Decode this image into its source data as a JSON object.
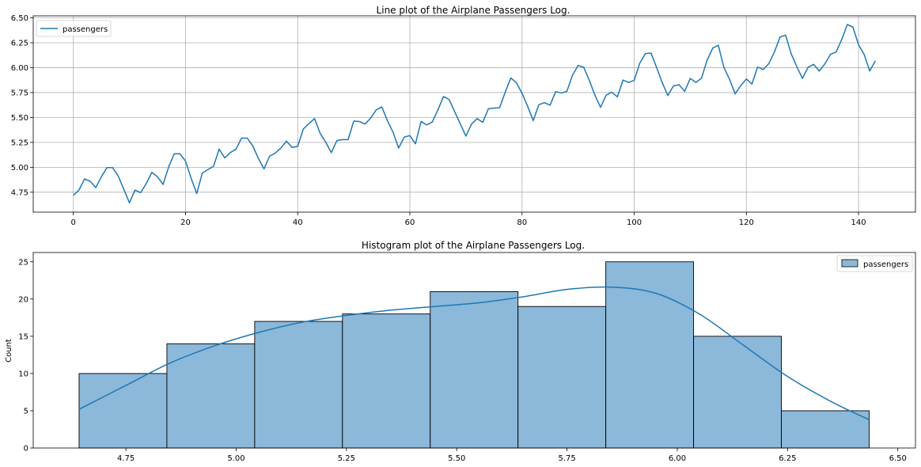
{
  "chart_data": [
    {
      "type": "line",
      "title": "Line plot of the Airplane Passengers Log.",
      "xlabel": "",
      "ylabel": "",
      "xlim": [
        -7.15,
        150.15
      ],
      "ylim": [
        4.55,
        6.52
      ],
      "xticks": [
        0,
        20,
        40,
        60,
        80,
        100,
        120,
        140
      ],
      "xtick_labels": [
        "0",
        "20",
        "40",
        "60",
        "80",
        "100",
        "120",
        "140"
      ],
      "yticks": [
        4.75,
        5.0,
        5.25,
        5.5,
        5.75,
        6.0,
        6.25,
        6.5
      ],
      "ytick_labels": [
        "4.75",
        "5.00",
        "5.25",
        "5.50",
        "5.75",
        "6.00",
        "6.25",
        "6.50"
      ],
      "grid": true,
      "legend_position": "top-left",
      "color": "#1f77b4",
      "series": [
        {
          "name": "passengers",
          "x_start": 0,
          "x_step": 1,
          "values": [
            4.718,
            4.771,
            4.883,
            4.86,
            4.796,
            4.905,
            4.997,
            4.997,
            4.913,
            4.779,
            4.644,
            4.771,
            4.745,
            4.836,
            4.949,
            4.905,
            4.828,
            5.004,
            5.136,
            5.136,
            5.063,
            4.89,
            4.736,
            4.942,
            4.977,
            5.011,
            5.182,
            5.094,
            5.148,
            5.182,
            5.293,
            5.293,
            5.215,
            5.088,
            4.984,
            5.112,
            5.142,
            5.193,
            5.263,
            5.199,
            5.209,
            5.384,
            5.438,
            5.489,
            5.342,
            5.252,
            5.147,
            5.268,
            5.278,
            5.278,
            5.464,
            5.46,
            5.434,
            5.493,
            5.576,
            5.606,
            5.468,
            5.352,
            5.193,
            5.303,
            5.318,
            5.236,
            5.46,
            5.425,
            5.455,
            5.576,
            5.71,
            5.68,
            5.557,
            5.434,
            5.313,
            5.434,
            5.489,
            5.451,
            5.587,
            5.595,
            5.598,
            5.753,
            5.897,
            5.849,
            5.743,
            5.613,
            5.468,
            5.628,
            5.649,
            5.624,
            5.759,
            5.746,
            5.762,
            5.924,
            6.023,
            6.004,
            5.872,
            5.724,
            5.602,
            5.724,
            5.753,
            5.707,
            5.875,
            5.852,
            5.872,
            6.045,
            6.142,
            6.146,
            6.001,
            5.849,
            5.72,
            5.817,
            5.829,
            5.762,
            5.892,
            5.852,
            5.894,
            6.075,
            6.196,
            6.225,
            6.001,
            5.883,
            5.737,
            5.82,
            5.886,
            5.835,
            6.006,
            5.981,
            6.04,
            6.157,
            6.306,
            6.326,
            6.138,
            6.009,
            5.892,
            6.004,
            6.033,
            5.966,
            6.038,
            6.133,
            6.157,
            6.282,
            6.433,
            6.407,
            6.23,
            6.133,
            5.966,
            6.068
          ]
        }
      ]
    },
    {
      "type": "bar",
      "title": "Histogram plot of the Airplane Passengers Log.",
      "xlabel": "",
      "ylabel": "Count",
      "xlim": [
        4.54,
        6.54
      ],
      "ylim": [
        0,
        26.25
      ],
      "xticks": [
        4.75,
        5.0,
        5.25,
        5.5,
        5.75,
        6.0,
        6.25,
        6.5
      ],
      "xtick_labels": [
        "4.75",
        "5.00",
        "5.25",
        "5.50",
        "5.75",
        "6.00",
        "6.25",
        "6.50"
      ],
      "yticks": [
        0,
        5,
        10,
        15,
        20,
        25
      ],
      "ytick_labels": [
        "0",
        "5",
        "10",
        "15",
        "20",
        "25"
      ],
      "grid": false,
      "legend_position": "top-right",
      "bar_color": "#8cb8d9",
      "edge_color": "#000000",
      "kde_color": "#1f77b4",
      "bin_edges": [
        4.644,
        4.843,
        5.042,
        5.241,
        5.44,
        5.639,
        5.838,
        6.037,
        6.236,
        6.435
      ],
      "series": [
        {
          "name": "passengers",
          "values": [
            10,
            14,
            17,
            18,
            21,
            19,
            25,
            15,
            5
          ]
        }
      ],
      "kde": {
        "x": [
          4.644,
          4.75,
          4.85,
          4.95,
          5.05,
          5.15,
          5.25,
          5.35,
          5.45,
          5.55,
          5.65,
          5.75,
          5.85,
          5.95,
          6.05,
          6.15,
          6.25,
          6.35,
          6.435
        ],
        "y": [
          5.2,
          8.4,
          11.4,
          13.7,
          15.5,
          16.9,
          17.8,
          18.5,
          19.0,
          19.5,
          20.3,
          21.3,
          21.6,
          20.8,
          18.0,
          13.8,
          9.6,
          6.2,
          3.8
        ]
      }
    }
  ]
}
